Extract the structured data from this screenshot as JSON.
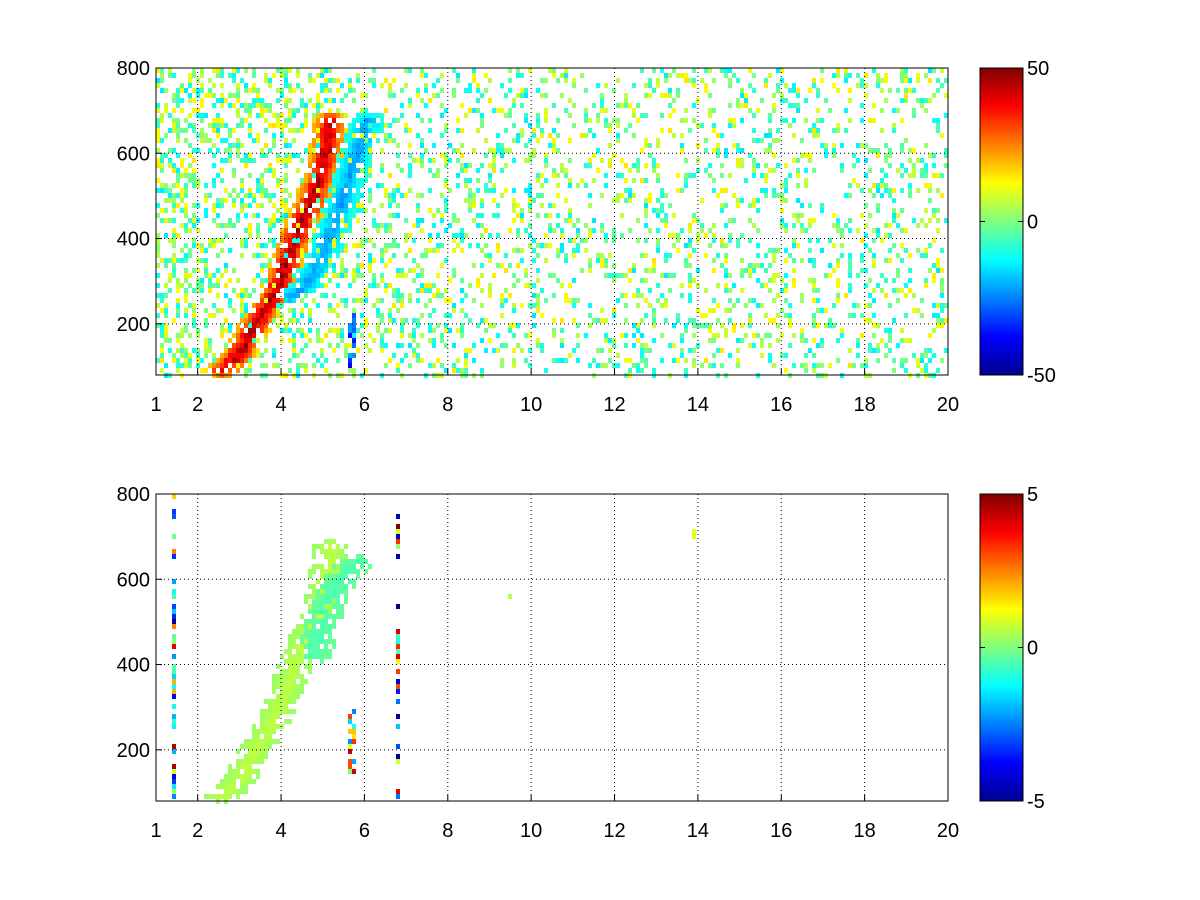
{
  "chart_data": [
    {
      "type": "heatmap",
      "title": "",
      "xlabel": "",
      "ylabel": "",
      "xlim": [
        1,
        20
      ],
      "ylim": [
        80,
        800
      ],
      "x_ticks": [
        1,
        2,
        4,
        6,
        8,
        10,
        12,
        14,
        16,
        18,
        20
      ],
      "x_tick_labels": [
        "1",
        "2",
        "4",
        "6",
        "8",
        "10",
        "12",
        "14",
        "16",
        "18",
        "20"
      ],
      "y_ticks": [
        200,
        400,
        600,
        800
      ],
      "y_tick_labels": [
        "200",
        "400",
        "600",
        "800"
      ],
      "grid": true,
      "colormap": "jet",
      "clim": [
        -50,
        50
      ],
      "colorbar_ticks": [
        50,
        0,
        -50
      ],
      "colorbar_tick_labels": [
        "50",
        "0",
        "-50"
      ],
      "features": [
        {
          "kind": "ridge",
          "sign": "positive",
          "points": [
            [
              2.6,
              90
            ],
            [
              3.0,
              130
            ],
            [
              3.4,
              200
            ],
            [
              3.8,
              260
            ],
            [
              4.1,
              330
            ],
            [
              4.4,
              420
            ],
            [
              4.7,
              480
            ],
            [
              5.0,
              560
            ],
            [
              5.2,
              680
            ]
          ],
          "peak": 45
        },
        {
          "kind": "ridge",
          "sign": "negative",
          "points": [
            [
              4.2,
              260
            ],
            [
              4.6,
              290
            ],
            [
              5.0,
              360
            ],
            [
              5.3,
              440
            ],
            [
              5.6,
              530
            ],
            [
              5.9,
              620
            ],
            [
              6.1,
              680
            ]
          ],
          "peak": -22
        },
        {
          "kind": "streak",
          "sign": "negative",
          "x": 5.7,
          "y_range": [
            100,
            230
          ],
          "peak": -40
        }
      ],
      "noise_density": "dense for x < 10, sparser toward x = 20",
      "noise_range": [
        -15,
        15
      ]
    },
    {
      "type": "heatmap",
      "title": "",
      "xlabel": "",
      "ylabel": "",
      "xlim": [
        1,
        20
      ],
      "ylim": [
        80,
        800
      ],
      "x_ticks": [
        1,
        2,
        4,
        6,
        8,
        10,
        12,
        14,
        16,
        18,
        20
      ],
      "x_tick_labels": [
        "1",
        "2",
        "4",
        "6",
        "8",
        "10",
        "12",
        "14",
        "16",
        "18",
        "20"
      ],
      "y_ticks": [
        200,
        400,
        600,
        800
      ],
      "y_tick_labels": [
        "200",
        "400",
        "600",
        "800"
      ],
      "grid": true,
      "colormap": "jet",
      "clim": [
        -5,
        5
      ],
      "colorbar_ticks": [
        5,
        0,
        -5
      ],
      "colorbar_tick_labels": [
        "5",
        "0",
        "-5"
      ],
      "features": [
        {
          "kind": "ridge",
          "sign": "slightly-positive",
          "points": [
            [
              2.6,
              90
            ],
            [
              3.0,
              130
            ],
            [
              3.4,
              200
            ],
            [
              3.8,
              260
            ],
            [
              4.1,
              330
            ],
            [
              4.4,
              420
            ],
            [
              4.7,
              480
            ],
            [
              5.0,
              560
            ],
            [
              5.2,
              680
            ]
          ],
          "peak": 0.6
        },
        {
          "kind": "ridge",
          "sign": "slightly-negative",
          "points": [
            [
              4.8,
              420
            ],
            [
              5.0,
              500
            ],
            [
              5.3,
              580
            ],
            [
              5.6,
              620
            ],
            [
              5.9,
              640
            ]
          ],
          "peak": -0.5
        },
        {
          "kind": "stripe",
          "x": 1.4,
          "y_range": [
            80,
            800
          ],
          "values": "mixed -5..5"
        },
        {
          "kind": "stripe",
          "x": 5.7,
          "y_range": [
            140,
            300
          ],
          "values": "mixed -5..5"
        },
        {
          "kind": "stripe",
          "x": 6.8,
          "y_range": [
            80,
            750
          ],
          "values": "mixed -5..5"
        },
        {
          "kind": "spot",
          "x": 13.9,
          "y": 710,
          "value": 1.0
        },
        {
          "kind": "spot",
          "x": 9.5,
          "y": 560,
          "value": 0.5
        }
      ]
    }
  ]
}
